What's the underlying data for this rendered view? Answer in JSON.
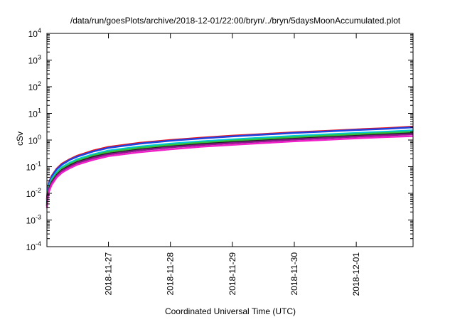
{
  "chart_data": {
    "type": "line",
    "title": "/data/run/goesPlots/archive/2018-12-01/22:00/bryn/../bryn/5daysMoonAccumulated.plot",
    "xlabel": "Coordinated Universal Time (UTC)",
    "ylabel": "cSv",
    "y_scale": "log",
    "ylim": [
      0.0001,
      10000
    ],
    "xlim": [
      "2018-11-26 00:10",
      "2018-12-01 22:00"
    ],
    "y_ticks": [
      {
        "value": 0.0001,
        "base": "10",
        "exp": "-4"
      },
      {
        "value": 0.001,
        "base": "10",
        "exp": "-3"
      },
      {
        "value": 0.01,
        "base": "10",
        "exp": "-2"
      },
      {
        "value": 0.1,
        "base": "10",
        "exp": "-1"
      },
      {
        "value": 1,
        "base": "10",
        "exp": "0"
      },
      {
        "value": 10,
        "base": "10",
        "exp": "1"
      },
      {
        "value": 100,
        "base": "10",
        "exp": "2"
      },
      {
        "value": 1000,
        "base": "10",
        "exp": "3"
      },
      {
        "value": 10000,
        "base": "10",
        "exp": "4"
      }
    ],
    "x_ticks": [
      {
        "value": "2018-11-27 00:00",
        "label": "2018-11-27"
      },
      {
        "value": "2018-11-28 00:00",
        "label": "2018-11-28"
      },
      {
        "value": "2018-11-29 00:00",
        "label": "2018-11-29"
      },
      {
        "value": "2018-11-30 00:00",
        "label": "2018-11-30"
      },
      {
        "value": "2018-12-01 00:00",
        "label": "2018-12-01"
      }
    ],
    "x": [
      "2018-11-26 00:10",
      "2018-11-26 00:30",
      "2018-11-26 01:00",
      "2018-11-26 02:00",
      "2018-11-26 04:00",
      "2018-11-26 06:00",
      "2018-11-26 09:00",
      "2018-11-26 12:00",
      "2018-11-26 18:00",
      "2018-11-27 00:00",
      "2018-11-27 12:00",
      "2018-11-28 00:00",
      "2018-11-28 12:00",
      "2018-11-29 00:00",
      "2018-11-29 12:00",
      "2018-11-30 00:00",
      "2018-11-30 12:00",
      "2018-12-01 00:00",
      "2018-12-01 12:00",
      "2018-12-01 22:00"
    ],
    "series": [
      {
        "color": "#e8141c",
        "values": [
          0.006,
          0.015,
          0.026,
          0.045,
          0.085,
          0.13,
          0.19,
          0.26,
          0.4,
          0.55,
          0.78,
          1.0,
          1.22,
          1.45,
          1.68,
          1.95,
          2.2,
          2.5,
          2.8,
          3.2
        ]
      },
      {
        "color": "#2040e0",
        "values": [
          0.0055,
          0.014,
          0.024,
          0.042,
          0.08,
          0.12,
          0.18,
          0.24,
          0.37,
          0.51,
          0.73,
          0.94,
          1.15,
          1.37,
          1.59,
          1.85,
          2.09,
          2.38,
          2.66,
          3.0
        ]
      },
      {
        "color": "#00c8d8",
        "values": [
          0.0045,
          0.011,
          0.019,
          0.034,
          0.063,
          0.096,
          0.14,
          0.19,
          0.29,
          0.4,
          0.57,
          0.73,
          0.89,
          1.06,
          1.23,
          1.43,
          1.62,
          1.84,
          2.06,
          2.3
        ]
      },
      {
        "color": "#30c040",
        "values": [
          0.004,
          0.0095,
          0.017,
          0.03,
          0.056,
          0.085,
          0.125,
          0.17,
          0.26,
          0.36,
          0.51,
          0.65,
          0.8,
          0.95,
          1.1,
          1.28,
          1.45,
          1.65,
          1.85,
          2.05
        ]
      },
      {
        "color": "#222222",
        "values": [
          0.0035,
          0.0085,
          0.015,
          0.026,
          0.049,
          0.075,
          0.11,
          0.15,
          0.23,
          0.31,
          0.44,
          0.57,
          0.7,
          0.83,
          0.96,
          1.12,
          1.27,
          1.44,
          1.62,
          1.8
        ]
      },
      {
        "color": "#8a1a8a",
        "values": [
          0.0033,
          0.008,
          0.014,
          0.024,
          0.046,
          0.07,
          0.1,
          0.14,
          0.21,
          0.29,
          0.41,
          0.53,
          0.65,
          0.77,
          0.89,
          1.04,
          1.18,
          1.34,
          1.5,
          1.65
        ]
      },
      {
        "color": "#f020c8",
        "values": [
          0.0028,
          0.0068,
          0.012,
          0.021,
          0.04,
          0.06,
          0.088,
          0.12,
          0.18,
          0.25,
          0.35,
          0.45,
          0.56,
          0.66,
          0.77,
          0.9,
          1.02,
          1.16,
          1.3,
          1.4
        ]
      }
    ]
  }
}
